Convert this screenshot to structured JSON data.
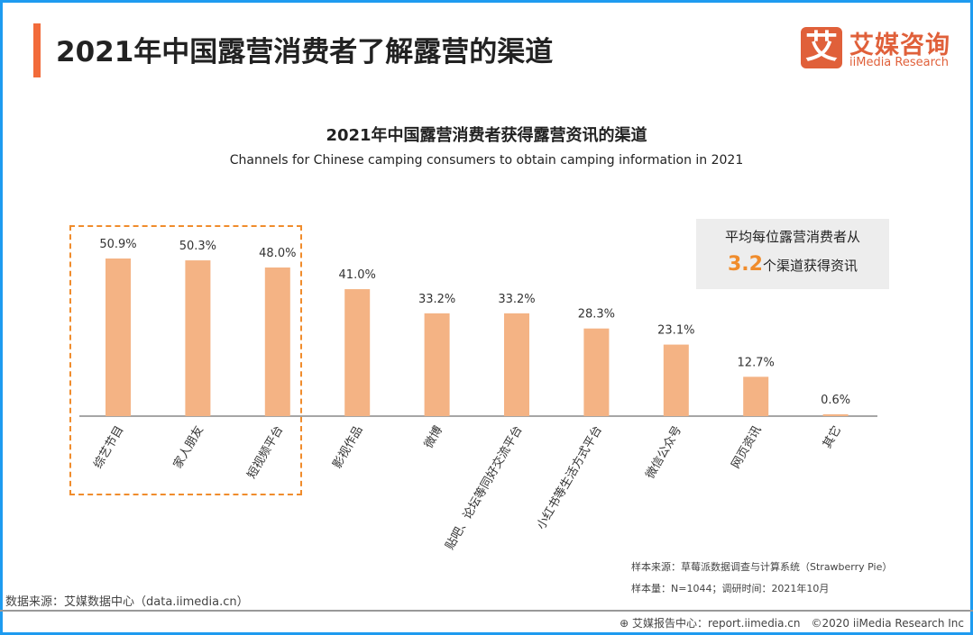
{
  "header": {
    "title": "2021年中国露营消费者了解露营的渠道",
    "logo_mark": "艾",
    "logo_cn": "艾媒咨询",
    "logo_en": "iiMedia Research"
  },
  "chart_data": {
    "type": "bar",
    "title": "2021年中国露营消费者获得露营资讯的渠道",
    "subtitle": "Channels for Chinese camping consumers to obtain camping information in 2021",
    "categories": [
      "综艺节目",
      "家人朋友",
      "短视频平台",
      "影视作品",
      "微博",
      "贴吧、论坛等同好交流平台",
      "小红书等生活方式平台",
      "微信公众号",
      "网页资讯",
      "其它"
    ],
    "values": [
      50.9,
      50.3,
      48.0,
      41.0,
      33.2,
      33.2,
      28.3,
      23.1,
      12.7,
      0.6
    ],
    "value_labels": [
      "50.9%",
      "50.3%",
      "48.0%",
      "41.0%",
      "33.2%",
      "33.2%",
      "28.3%",
      "23.1%",
      "12.7%",
      "0.6%"
    ],
    "unit": "%",
    "ylim": [
      0,
      55
    ],
    "grid": false,
    "bar_color": "#f4b384",
    "highlight_color": "#f08c2c",
    "highlighted_categories": [
      "综艺节目",
      "家人朋友",
      "短视频平台"
    ]
  },
  "note": {
    "line1": "平均每位露营消费者从",
    "value": "3.2",
    "line2": "个渠道获得资讯"
  },
  "footer": {
    "sample_source": "样本来源：草莓派数据调查与计算系统（Strawberry Pie）",
    "sample_size": "样本量：N=1044；调研时间：2021年10月",
    "data_source": "数据来源：艾媒数据中心（data.iimedia.cn）",
    "copyright": "艾媒报告中心：report.iimedia.cn　©2020  iiMedia Research  Inc"
  }
}
